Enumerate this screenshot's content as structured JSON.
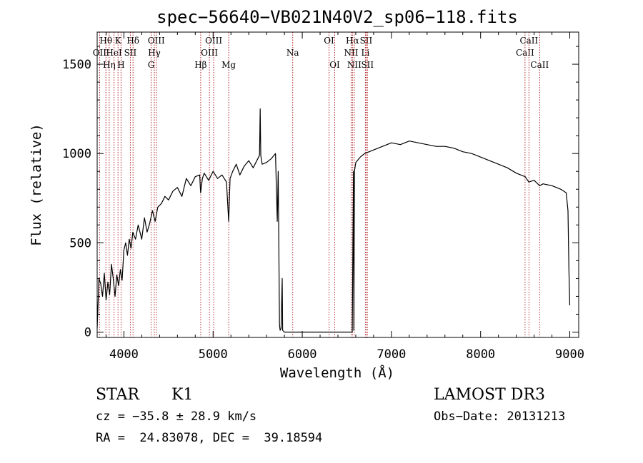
{
  "chart_data": {
    "type": "line",
    "title": "spec−56640−VB021N40V2_sp06−118.fits",
    "xlabel": "Wavelength (Å)",
    "ylabel": "Flux (relative)",
    "xlim": [
      3700,
      9100
    ],
    "ylim": [
      -30,
      1680
    ],
    "xticks": [
      4000,
      5000,
      6000,
      7000,
      8000,
      9000
    ],
    "xtick_labels": [
      "4000",
      "5000",
      "6000",
      "7000",
      "8000",
      "9000"
    ],
    "yticks": [
      0,
      500,
      1000,
      1500
    ],
    "ytick_labels": [
      "0",
      "500",
      "1000",
      "1500"
    ],
    "series": [
      {
        "name": "spectrum",
        "x": [
          3700,
          3720,
          3740,
          3760,
          3780,
          3800,
          3820,
          3840,
          3860,
          3880,
          3900,
          3920,
          3940,
          3960,
          3980,
          4000,
          4020,
          4040,
          4060,
          4080,
          4100,
          4130,
          4160,
          4200,
          4230,
          4260,
          4290,
          4320,
          4350,
          4380,
          4420,
          4460,
          4500,
          4550,
          4600,
          4650,
          4700,
          4750,
          4800,
          4850,
          4860,
          4880,
          4900,
          4950,
          5000,
          5050,
          5100,
          5150,
          5175,
          5190,
          5220,
          5260,
          5300,
          5350,
          5400,
          5450,
          5500,
          5520,
          5528,
          5535,
          5550,
          5600,
          5650,
          5700,
          5720,
          5730,
          5745,
          5752,
          5762,
          5775,
          5780,
          5800,
          6560,
          6575,
          6578,
          6585,
          6600,
          6650,
          6700,
          6750,
          6800,
          6900,
          7000,
          7100,
          7200,
          7300,
          7400,
          7500,
          7600,
          7700,
          7800,
          7900,
          8000,
          8100,
          8200,
          8300,
          8400,
          8500,
          8540,
          8600,
          8662,
          8700,
          8800,
          8900,
          8960,
          8980,
          8990,
          9000
        ],
        "y": [
          20,
          300,
          270,
          200,
          330,
          180,
          280,
          210,
          380,
          300,
          200,
          320,
          260,
          350,
          290,
          460,
          500,
          430,
          520,
          470,
          560,
          520,
          600,
          520,
          640,
          560,
          610,
          680,
          620,
          700,
          720,
          760,
          740,
          790,
          810,
          760,
          860,
          820,
          870,
          880,
          780,
          860,
          890,
          850,
          900,
          860,
          880,
          840,
          620,
          860,
          900,
          940,
          880,
          930,
          960,
          920,
          970,
          990,
          1250,
          990,
          940,
          950,
          970,
          1000,
          620,
          900,
          40,
          10,
          20,
          300,
          10,
          0,
          0,
          900,
          10,
          900,
          950,
          980,
          1000,
          1010,
          1020,
          1040,
          1060,
          1050,
          1070,
          1060,
          1050,
          1040,
          1040,
          1030,
          1010,
          1000,
          980,
          960,
          940,
          920,
          890,
          870,
          840,
          850,
          820,
          830,
          820,
          800,
          780,
          680,
          350,
          150
        ]
      }
    ],
    "line_markers": [
      {
        "label": "Hθ",
        "wavelength": 3798,
        "row": 1
      },
      {
        "label": "OII",
        "wavelength": 3727,
        "row": 2
      },
      {
        "label": "Hη",
        "wavelength": 3835,
        "row": 3
      },
      {
        "label": "HeI",
        "wavelength": 3889,
        "row": 2
      },
      {
        "label": "K",
        "wavelength": 3934,
        "row": 1
      },
      {
        "label": "H",
        "wavelength": 3968,
        "row": 3
      },
      {
        "label": "SII",
        "wavelength": 4072,
        "row": 2
      },
      {
        "label": "Hδ",
        "wavelength": 4102,
        "row": 1
      },
      {
        "label": "OIII",
        "wavelength": 4363,
        "row": 1
      },
      {
        "label": "Hγ",
        "wavelength": 4341,
        "row": 2
      },
      {
        "label": "G",
        "wavelength": 4305,
        "row": 3
      },
      {
        "label": "Hβ",
        "wavelength": 4861,
        "row": 3
      },
      {
        "label": "OIII",
        "wavelength": 4959,
        "row": 2
      },
      {
        "label": "OIII",
        "wavelength": 5007,
        "row": 1
      },
      {
        "label": "Mg",
        "wavelength": 5175,
        "row": 3
      },
      {
        "label": "Na",
        "wavelength": 5893,
        "row": 2
      },
      {
        "label": "OI",
        "wavelength": 6300,
        "row": 1
      },
      {
        "label": "OI",
        "wavelength": 6364,
        "row": 3
      },
      {
        "label": "NII",
        "wavelength": 6548,
        "row": 2
      },
      {
        "label": "Hα",
        "wavelength": 6563,
        "row": 1
      },
      {
        "label": "NII",
        "wavelength": 6583,
        "row": 3
      },
      {
        "label": "Li",
        "wavelength": 6708,
        "row": 2
      },
      {
        "label": "SII",
        "wavelength": 6716,
        "row": 1
      },
      {
        "label": "SII",
        "wavelength": 6731,
        "row": 3
      },
      {
        "label": "CaII",
        "wavelength": 8498,
        "row": 2
      },
      {
        "label": "CaII",
        "wavelength": 8542,
        "row": 1
      },
      {
        "label": "CaII",
        "wavelength": 8662,
        "row": 3
      }
    ],
    "grid": false,
    "marker_color": "#b22222",
    "line_color": "#000000"
  },
  "info": {
    "object_class": "STAR",
    "subclass": "K1",
    "survey": "LAMOST DR3",
    "redshift": "cz = −35.8 ± 28.9 km/s",
    "obs_date": "Obs−Date: 20131213",
    "coordinates": "RA =  24.83078, DEC =  39.18594"
  }
}
